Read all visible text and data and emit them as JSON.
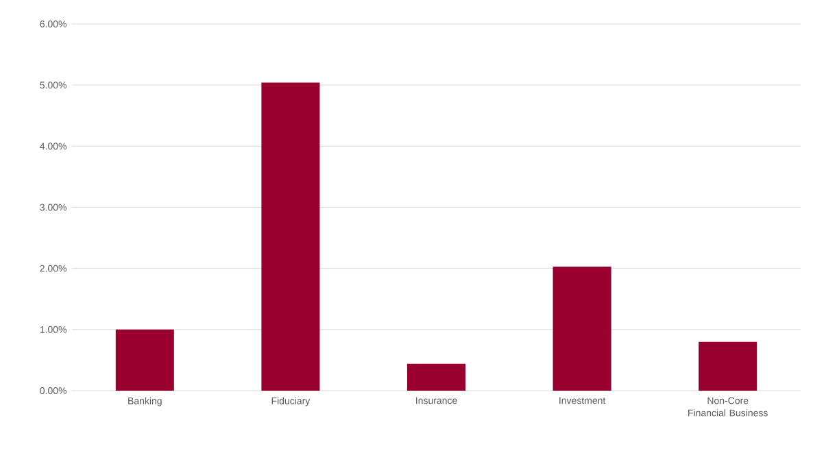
{
  "chart_data": {
    "type": "bar",
    "categories": [
      "Banking",
      "Fiduciary",
      "Insurance",
      "Investment",
      "Non-Core Financial Business"
    ],
    "values": [
      1.0,
      5.04,
      0.44,
      2.03,
      0.8
    ],
    "color": "#990030",
    "ylim": [
      0,
      6
    ],
    "yticks": [
      {
        "value": 0,
        "label": "0.00%"
      },
      {
        "value": 1,
        "label": "1.00%"
      },
      {
        "value": 2,
        "label": "2.00%"
      },
      {
        "value": 3,
        "label": "3.00%"
      },
      {
        "value": 4,
        "label": "4.00%"
      },
      {
        "value": 5,
        "label": "5.00%"
      },
      {
        "value": 6,
        "label": "6.00%"
      }
    ],
    "grid": "y"
  }
}
